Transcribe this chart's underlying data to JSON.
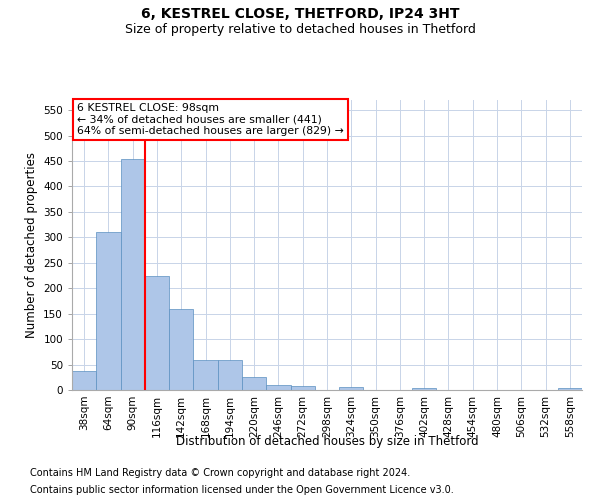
{
  "title": "6, KESTREL CLOSE, THETFORD, IP24 3HT",
  "subtitle": "Size of property relative to detached houses in Thetford",
  "xlabel": "Distribution of detached houses by size in Thetford",
  "ylabel": "Number of detached properties",
  "footnote1": "Contains HM Land Registry data © Crown copyright and database right 2024.",
  "footnote2": "Contains public sector information licensed under the Open Government Licence v3.0.",
  "annotation_line1": "6 KESTREL CLOSE: 98sqm",
  "annotation_line2": "← 34% of detached houses are smaller (441)",
  "annotation_line3": "64% of semi-detached houses are larger (829) →",
  "bins": [
    "38sqm",
    "64sqm",
    "90sqm",
    "116sqm",
    "142sqm",
    "168sqm",
    "194sqm",
    "220sqm",
    "246sqm",
    "272sqm",
    "298sqm",
    "324sqm",
    "350sqm",
    "376sqm",
    "402sqm",
    "428sqm",
    "454sqm",
    "480sqm",
    "506sqm",
    "532sqm",
    "558sqm"
  ],
  "values": [
    38,
    310,
    455,
    225,
    160,
    58,
    58,
    25,
    10,
    8,
    0,
    5,
    0,
    0,
    3,
    0,
    0,
    0,
    0,
    0,
    3
  ],
  "bar_color": "#aec6e8",
  "bar_edge_color": "#5a8fc0",
  "red_line_x": 2.5,
  "ylim": [
    0,
    570
  ],
  "yticks": [
    0,
    50,
    100,
    150,
    200,
    250,
    300,
    350,
    400,
    450,
    500,
    550
  ],
  "bg_color": "#ffffff",
  "grid_color": "#c8d4e8",
  "title_fontsize": 10,
  "subtitle_fontsize": 9,
  "axis_label_fontsize": 8.5,
  "tick_fontsize": 7.5,
  "footnote_fontsize": 7
}
